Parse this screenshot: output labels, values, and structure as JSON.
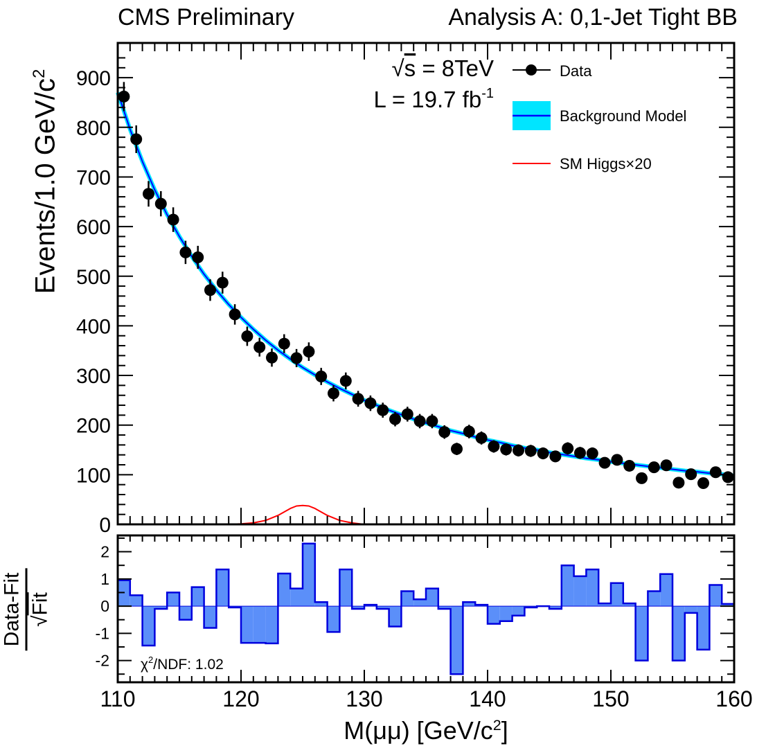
{
  "header": {
    "left": "CMS Preliminary",
    "right": "Analysis A: 0,1-Jet Tight BB"
  },
  "annotations": {
    "energy_prefix": "√",
    "energy_s": "s",
    "energy_rest": " = 8TeV",
    "lumi_main": "L = 19.7 fb",
    "lumi_sup": "-1",
    "chi2_main": "χ",
    "chi2_sup": "2",
    "chi2_rest": "/NDF: 1.02"
  },
  "axes": {
    "y_main": "Events/1.0 GeV/c",
    "y_main_sup": "2",
    "y_res_top": "Data-Fit",
    "y_res_bot_root": "√",
    "y_res_bot": "Fit",
    "x": "M(μμ) [GeV/c",
    "x_sup": "2",
    "x_close": "]"
  },
  "legend": {
    "data": "Data",
    "background": "Background Model",
    "higgs": "SM Higgs×20"
  },
  "colors": {
    "data": "#000000",
    "background_line": "#0000ff",
    "background_band": "#00e5ff",
    "higgs": "#ff0000",
    "residual_fill": "#5b8ff9",
    "residual_edge": "#0000dd"
  },
  "chart_data": [
    {
      "type": "scatter",
      "xlim": [
        110,
        160
      ],
      "ylim": [
        0,
        970
      ],
      "y_ticks": [
        0,
        100,
        200,
        300,
        400,
        500,
        600,
        700,
        800,
        900
      ],
      "x_ticks": [
        110,
        120,
        130,
        140,
        150,
        160
      ],
      "grid": false,
      "legend_position": "top-right",
      "series": [
        {
          "name": "Data",
          "type": "scatter",
          "x": [
            110.5,
            111.5,
            112.5,
            113.5,
            114.5,
            115.5,
            116.5,
            117.5,
            118.5,
            119.5,
            120.5,
            121.5,
            122.5,
            123.5,
            124.5,
            125.5,
            126.5,
            127.5,
            128.5,
            129.5,
            130.5,
            131.5,
            132.5,
            133.5,
            134.5,
            135.5,
            136.5,
            137.5,
            138.5,
            139.5,
            140.5,
            141.5,
            142.5,
            143.5,
            144.5,
            145.5,
            146.5,
            147.5,
            148.5,
            149.5,
            150.5,
            151.5,
            152.5,
            153.5,
            154.5,
            155.5,
            156.5,
            157.5,
            158.5,
            159.5
          ],
          "y": [
            862,
            776,
            666,
            646,
            614,
            548,
            538,
            472,
            487,
            423,
            379,
            357,
            336,
            364,
            335,
            348,
            298,
            264,
            289,
            253,
            244,
            230,
            212,
            222,
            208,
            208,
            186,
            152,
            187,
            174,
            157,
            151,
            149,
            148,
            143,
            137,
            153,
            144,
            143,
            124,
            130,
            118,
            93,
            115,
            119,
            84,
            101,
            83,
            105,
            95
          ]
        },
        {
          "name": "Background Model",
          "type": "line",
          "x": [
            110,
            111,
            112,
            113,
            114,
            115,
            116,
            117,
            118,
            119,
            120,
            121,
            122,
            123,
            124,
            125,
            126,
            127,
            128,
            129,
            130,
            131,
            132,
            133,
            134,
            135,
            136,
            137,
            138,
            139,
            140,
            141,
            142,
            143,
            144,
            145,
            146,
            147,
            148,
            149,
            150,
            151,
            152,
            153,
            154,
            155,
            156,
            157,
            158,
            159,
            160
          ],
          "y": [
            870,
            796,
            731,
            674,
            624,
            580,
            540,
            504,
            472,
            443,
            417,
            393,
            371,
            351,
            333,
            316,
            301,
            287,
            274,
            262,
            250,
            240,
            230,
            221,
            212,
            204,
            197,
            189,
            183,
            176,
            170,
            165,
            159,
            154,
            150,
            145,
            141,
            137,
            133,
            130,
            126,
            123,
            120,
            117,
            114,
            111,
            108,
            106,
            103,
            101,
            98
          ]
        },
        {
          "name": "SM Higgs×20",
          "type": "line",
          "x": [
            110,
            119,
            120,
            121,
            122,
            123,
            123.5,
            124,
            124.5,
            125,
            125.5,
            126,
            126.5,
            127,
            128,
            129,
            130,
            160
          ],
          "y": [
            0,
            0,
            1,
            3,
            8,
            18,
            25,
            32,
            37,
            38,
            37,
            32,
            25,
            18,
            8,
            3,
            0,
            0
          ]
        }
      ]
    },
    {
      "type": "bar",
      "ylabel": "Data-Fit / √Fit",
      "xlim": [
        110,
        160
      ],
      "ylim": [
        -2.8,
        2.6
      ],
      "y_ticks": [
        -2,
        -1,
        0,
        1,
        2
      ],
      "x_ticks": [
        110,
        120,
        130,
        140,
        150,
        160
      ],
      "grid": false,
      "bin_width": 1,
      "x_bin_starts": [
        110,
        111,
        112,
        113,
        114,
        115,
        116,
        117,
        118,
        119,
        120,
        121,
        122,
        123,
        124,
        125,
        126,
        127,
        128,
        129,
        130,
        131,
        132,
        133,
        134,
        135,
        136,
        137,
        138,
        139,
        140,
        141,
        142,
        143,
        144,
        145,
        146,
        147,
        148,
        149,
        150,
        151,
        152,
        153,
        154,
        155,
        156,
        157,
        158,
        159
      ],
      "values": [
        0.95,
        0.4,
        -1.45,
        -0.1,
        0.5,
        -0.5,
        0.7,
        -0.8,
        1.35,
        -0.05,
        -1.35,
        -1.35,
        -1.37,
        1.2,
        0.65,
        2.3,
        0.15,
        -0.95,
        1.35,
        -0.1,
        0.05,
        -0.1,
        -0.75,
        0.55,
        0.25,
        0.65,
        -0.1,
        -2.5,
        0.15,
        0.05,
        -0.65,
        -0.55,
        -0.35,
        -0.05,
        0.0,
        -0.1,
        1.5,
        1.1,
        1.35,
        0.1,
        0.85,
        0.1,
        -2.0,
        0.55,
        1.18,
        -2.0,
        -0.25,
        -1.6,
        0.78,
        0.08
      ]
    }
  ]
}
